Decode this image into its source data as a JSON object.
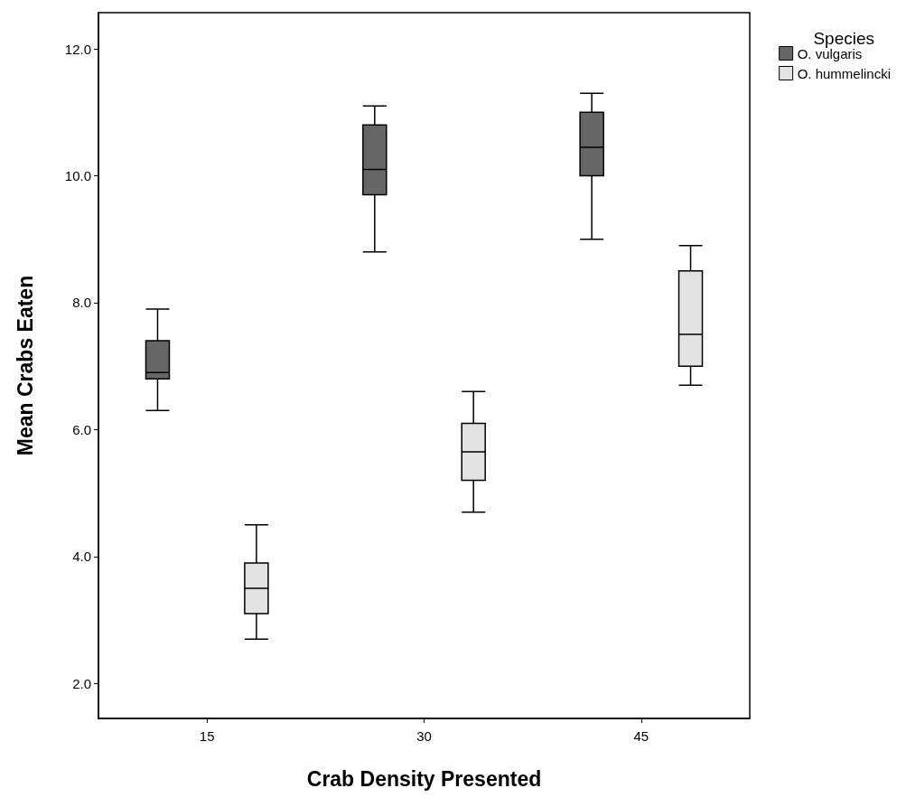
{
  "chart_data": {
    "type": "box",
    "xlabel": "Crab Density Presented",
    "ylabel": "Mean Crabs Eaten",
    "legend_title": "Species",
    "categories": [
      "15",
      "30",
      "45"
    ],
    "ylim": [
      1.45,
      12.57
    ],
    "yticks": [
      {
        "value": 2,
        "label": "2.0"
      },
      {
        "value": 4,
        "label": "4.0"
      },
      {
        "value": 6,
        "label": "6.0"
      },
      {
        "value": 8,
        "label": "8.0"
      },
      {
        "value": 10,
        "label": "10.0"
      },
      {
        "value": 12,
        "label": "12.0"
      }
    ],
    "grid": false,
    "legend": "top right",
    "series": [
      {
        "name": "O. vulgaris",
        "color": "#666666",
        "boxes": [
          {
            "low": 6.3,
            "q1": 6.8,
            "median": 6.9,
            "q3": 7.4,
            "high": 7.9
          },
          {
            "low": 8.8,
            "q1": 9.7,
            "median": 10.1,
            "q3": 10.8,
            "high": 11.1
          },
          {
            "low": 9.0,
            "q1": 10.0,
            "median": 10.45,
            "q3": 11.0,
            "high": 11.3
          }
        ]
      },
      {
        "name": "O. hummelincki",
        "color": "#e3e3e3",
        "boxes": [
          {
            "low": 2.7,
            "q1": 3.1,
            "median": 3.5,
            "q3": 3.9,
            "high": 4.5
          },
          {
            "low": 4.7,
            "q1": 5.2,
            "median": 5.65,
            "q3": 6.1,
            "high": 6.6
          },
          {
            "low": 6.7,
            "q1": 7.0,
            "median": 7.5,
            "q3": 8.5,
            "high": 8.9
          }
        ]
      }
    ]
  }
}
